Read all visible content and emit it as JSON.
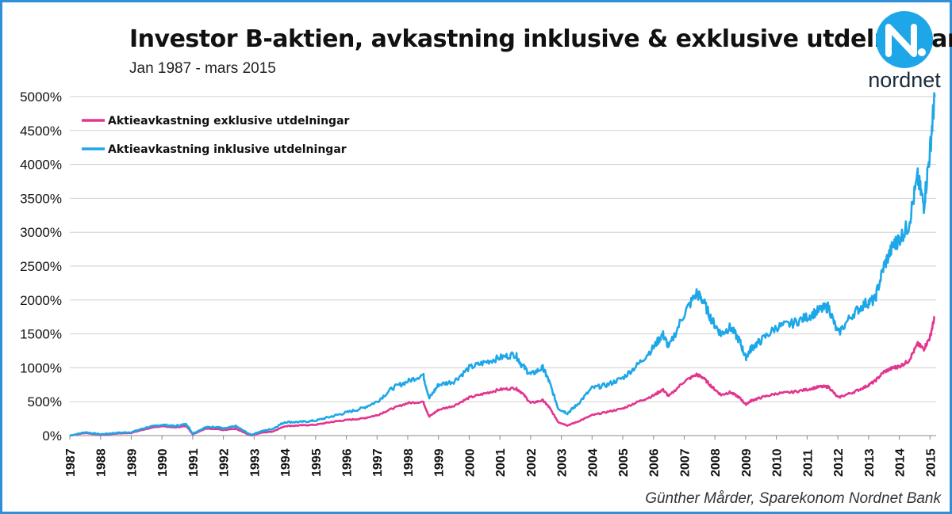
{
  "chart_data": {
    "type": "line",
    "title": "Investor B-aktien, avkastning inklusive & exklusive utdelningar",
    "subtitle": "Jan 1987 - mars 2015",
    "xlabel": "",
    "ylabel": "",
    "xlim": [
      1987.0,
      2015.2
    ],
    "ylim": [
      0,
      5000
    ],
    "grid": true,
    "legend_position": "top-left",
    "y_ticks": [
      "0%",
      "500%",
      "1000%",
      "1500%",
      "2000%",
      "2500%",
      "3000%",
      "3500%",
      "4000%",
      "4500%",
      "5000%"
    ],
    "x_ticks": [
      "1987",
      "1988",
      "1989",
      "1990",
      "1991",
      "1992",
      "1993",
      "1994",
      "1995",
      "1996",
      "1997",
      "1998",
      "1999",
      "2000",
      "2001",
      "2002",
      "2003",
      "2004",
      "2005",
      "2006",
      "2007",
      "2008",
      "2009",
      "2010",
      "2011",
      "2012",
      "2013",
      "2014",
      "2015"
    ],
    "series": [
      {
        "name": "Aktieavkastning exklusive utdelningar",
        "color": "#e2358f",
        "x": [
          1987.0,
          1987.5,
          1988.0,
          1988.5,
          1989.0,
          1989.5,
          1990.0,
          1990.4,
          1990.8,
          1991.0,
          1991.4,
          1991.8,
          1992.0,
          1992.4,
          1992.9,
          1993.2,
          1993.6,
          1994.0,
          1994.5,
          1995.0,
          1995.5,
          1996.0,
          1996.5,
          1997.0,
          1997.5,
          1998.0,
          1998.5,
          1998.7,
          1999.0,
          1999.5,
          2000.0,
          2000.5,
          2001.0,
          2001.5,
          2001.7,
          2002.0,
          2002.4,
          2002.6,
          2002.9,
          2003.2,
          2003.5,
          2004.0,
          2004.5,
          2005.0,
          2005.5,
          2006.0,
          2006.3,
          2006.5,
          2007.0,
          2007.4,
          2007.6,
          2007.9,
          2008.2,
          2008.5,
          2008.8,
          2009.0,
          2009.2,
          2009.5,
          2010.0,
          2010.5,
          2011.0,
          2011.4,
          2011.7,
          2012.0,
          2012.5,
          2012.9,
          2013.2,
          2013.5,
          2013.8,
          2014.0,
          2014.3,
          2014.6,
          2014.8,
          2015.0,
          2015.15
        ],
        "values": [
          0,
          40,
          10,
          30,
          40,
          100,
          140,
          120,
          140,
          20,
          100,
          100,
          80,
          100,
          0,
          40,
          60,
          140,
          150,
          160,
          200,
          230,
          250,
          300,
          400,
          480,
          500,
          280,
          380,
          440,
          560,
          620,
          680,
          700,
          640,
          480,
          520,
          420,
          200,
          150,
          200,
          300,
          350,
          400,
          500,
          590,
          680,
          580,
          800,
          900,
          860,
          720,
          600,
          640,
          560,
          460,
          520,
          560,
          620,
          640,
          680,
          720,
          720,
          560,
          640,
          720,
          800,
          940,
          1000,
          1020,
          1100,
          1350,
          1280,
          1450,
          1750
        ]
      },
      {
        "name": "Aktieavkastning inklusive utdelningar",
        "color": "#1ea7e8",
        "x": [
          1987.0,
          1987.5,
          1988.0,
          1988.5,
          1989.0,
          1989.5,
          1990.0,
          1990.4,
          1990.8,
          1991.0,
          1991.4,
          1991.8,
          1992.0,
          1992.4,
          1992.9,
          1993.2,
          1993.6,
          1994.0,
          1994.5,
          1995.0,
          1995.5,
          1996.0,
          1996.5,
          1997.0,
          1997.5,
          1998.0,
          1998.5,
          1998.7,
          1999.0,
          1999.5,
          2000.0,
          2000.5,
          2001.0,
          2001.5,
          2001.7,
          2002.0,
          2002.4,
          2002.6,
          2002.9,
          2003.2,
          2003.5,
          2004.0,
          2004.5,
          2005.0,
          2005.5,
          2006.0,
          2006.3,
          2006.5,
          2007.0,
          2007.4,
          2007.6,
          2007.9,
          2008.2,
          2008.5,
          2008.8,
          2009.0,
          2009.2,
          2009.5,
          2010.0,
          2010.5,
          2011.0,
          2011.4,
          2011.7,
          2012.0,
          2012.5,
          2012.9,
          2013.2,
          2013.5,
          2013.8,
          2014.0,
          2014.3,
          2014.6,
          2014.8,
          2015.0,
          2015.15
        ],
        "values": [
          0,
          50,
          20,
          40,
          50,
          120,
          160,
          140,
          170,
          30,
          120,
          130,
          100,
          140,
          10,
          60,
          100,
          200,
          200,
          220,
          280,
          340,
          400,
          500,
          700,
          800,
          900,
          550,
          750,
          800,
          1000,
          1080,
          1150,
          1200,
          1050,
          900,
          1000,
          800,
          400,
          330,
          450,
          700,
          750,
          850,
          1050,
          1300,
          1500,
          1300,
          1800,
          2100,
          2000,
          1700,
          1500,
          1600,
          1400,
          1150,
          1300,
          1400,
          1600,
          1650,
          1750,
          1850,
          1900,
          1500,
          1800,
          1950,
          2000,
          2500,
          2800,
          2900,
          3100,
          3800,
          3400,
          4200,
          5000
        ]
      }
    ]
  },
  "credit": "Günther Mårder, Sparekonom Nordnet Bank",
  "logo": {
    "icon": "nordnet-logo-icon",
    "word": "nordnet",
    "color": "#1ea7e8"
  }
}
